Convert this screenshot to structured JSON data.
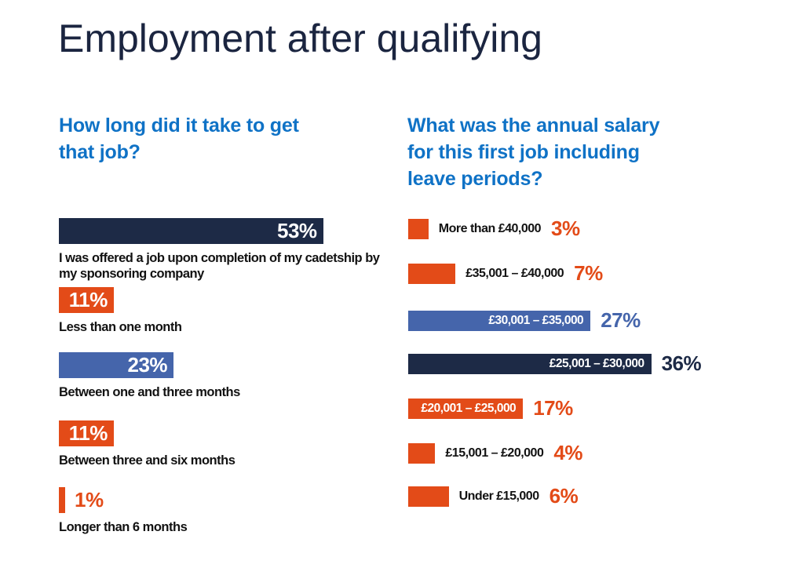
{
  "title": "Employment after qualifying",
  "palette": {
    "navy": "#1d2a46",
    "orange": "#e34b18",
    "blue": "#4565ab",
    "heading_blue": "#0f72c6",
    "label_black": "#121212",
    "background": "#ffffff"
  },
  "chart_data": [
    {
      "type": "bar",
      "orientation": "horizontal",
      "title": "How long did it take to get that job?",
      "unit": "percent",
      "value_suffix": "%",
      "categories": [
        "I was offered a job upon completion of my cadetship by my sponsoring company",
        "Less than one month",
        "Between one and three months",
        "Between three and six months",
        "Longer than 6 months"
      ],
      "values": [
        53,
        11,
        23,
        11,
        1
      ],
      "bar_colors": [
        "navy",
        "orange",
        "blue",
        "orange",
        "orange"
      ],
      "value_label_placement": [
        "inside",
        "inside",
        "inside",
        "inside",
        "outside"
      ],
      "category_label_placement": "below-bar",
      "xlim": [
        0,
        100
      ],
      "grid": false,
      "legend": false
    },
    {
      "type": "bar",
      "orientation": "horizontal",
      "title": "What was the annual salary for this first job including leave periods?",
      "unit": "percent",
      "value_suffix": "%",
      "categories": [
        "More than £40,000",
        "£35,001 – £40,000",
        "£30,001 – £35,000",
        "£25,001 – £30,000",
        "£20,001 – £25,000",
        "£15,001 – £20,000",
        "Under £15,000"
      ],
      "values": [
        3,
        7,
        27,
        36,
        17,
        4,
        6
      ],
      "bar_colors": [
        "orange",
        "orange",
        "blue",
        "navy",
        "orange",
        "orange",
        "orange"
      ],
      "category_label_placement": [
        "right-of-bar",
        "right-of-bar",
        "inside-bar",
        "inside-bar",
        "inside-bar",
        "right-of-bar",
        "right-of-bar"
      ],
      "value_label_placement": "right-of-bar",
      "xlim": [
        0,
        100
      ],
      "grid": false,
      "legend": false
    }
  ]
}
